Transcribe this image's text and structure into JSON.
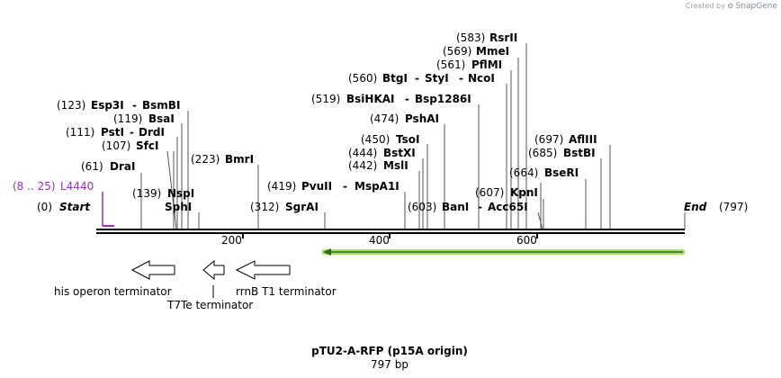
{
  "credit": {
    "created_by": "Created by",
    "brand": "SnapGene"
  },
  "title": "pTU2-A-RFP (p15A origin)",
  "subtitle": "797 bp",
  "ends": {
    "start_pos": "(0)",
    "start_label": "Start",
    "end_label": "End",
    "end_pos": "(797)"
  },
  "primer": {
    "range": "(8 .. 25)",
    "name": "L4440"
  },
  "ruler": [
    "200",
    "400",
    "600"
  ],
  "sites": {
    "s1": {
      "pos": "(583)",
      "name": "RsrII"
    },
    "s2": {
      "pos": "(569)",
      "name": "MmeI"
    },
    "s3": {
      "pos": "(561)",
      "name": "PflMI"
    },
    "s4": {
      "pos": "(560)",
      "name": "BtgI",
      "n2": "StyI",
      "n3": "NcoI"
    },
    "s5": {
      "pos": "(519)",
      "name": "BsiHKAI",
      "n2": "Bsp1286I"
    },
    "s6": {
      "pos": "(474)",
      "name": "PshAI"
    },
    "s7": {
      "pos": "(450)",
      "name": "TsoI"
    },
    "s8": {
      "pos": "(444)",
      "name": "BstXI"
    },
    "s9": {
      "pos": "(442)",
      "name": "MslI"
    },
    "s10": {
      "pos": "(419)",
      "name": "PvuII",
      "n2": "MspA1I"
    },
    "s11": {
      "pos": "(603)",
      "name": "BanI",
      "n2": "Acc65I"
    },
    "s12": {
      "pos": "(607)",
      "name": "KpnI"
    },
    "s13": {
      "pos": "(664)",
      "name": "BseRI"
    },
    "s14": {
      "pos": "(685)",
      "name": "BstBI"
    },
    "s15": {
      "pos": "(697)",
      "name": "AflIII"
    },
    "s16": {
      "pos": "(123)",
      "name": "Esp3I",
      "n2": "BsmBI"
    },
    "s17": {
      "pos": "(119)",
      "name": "BsaI"
    },
    "s18": {
      "pos": "(111)",
      "name": "PstI",
      "n2": "DrdI"
    },
    "s19": {
      "pos": "(107)",
      "name": "SfcI"
    },
    "s20": {
      "pos": "(61)",
      "name": "DraI"
    },
    "s21": {
      "pos": "(139)",
      "name": "NspI",
      "n2": "SphI"
    },
    "s22": {
      "pos": "(223)",
      "name": "BmrI"
    },
    "s23": {
      "pos": "(312)",
      "name": "SgrAI"
    }
  },
  "features": {
    "his": "his operon terminator",
    "t7te": "T7Te terminator",
    "rrnb": "rrnB T1 terminator"
  },
  "colors": {
    "primer": "#9b30c8",
    "feature_arrow": "#a8e06a",
    "feature_line": "#2e6b1e"
  }
}
